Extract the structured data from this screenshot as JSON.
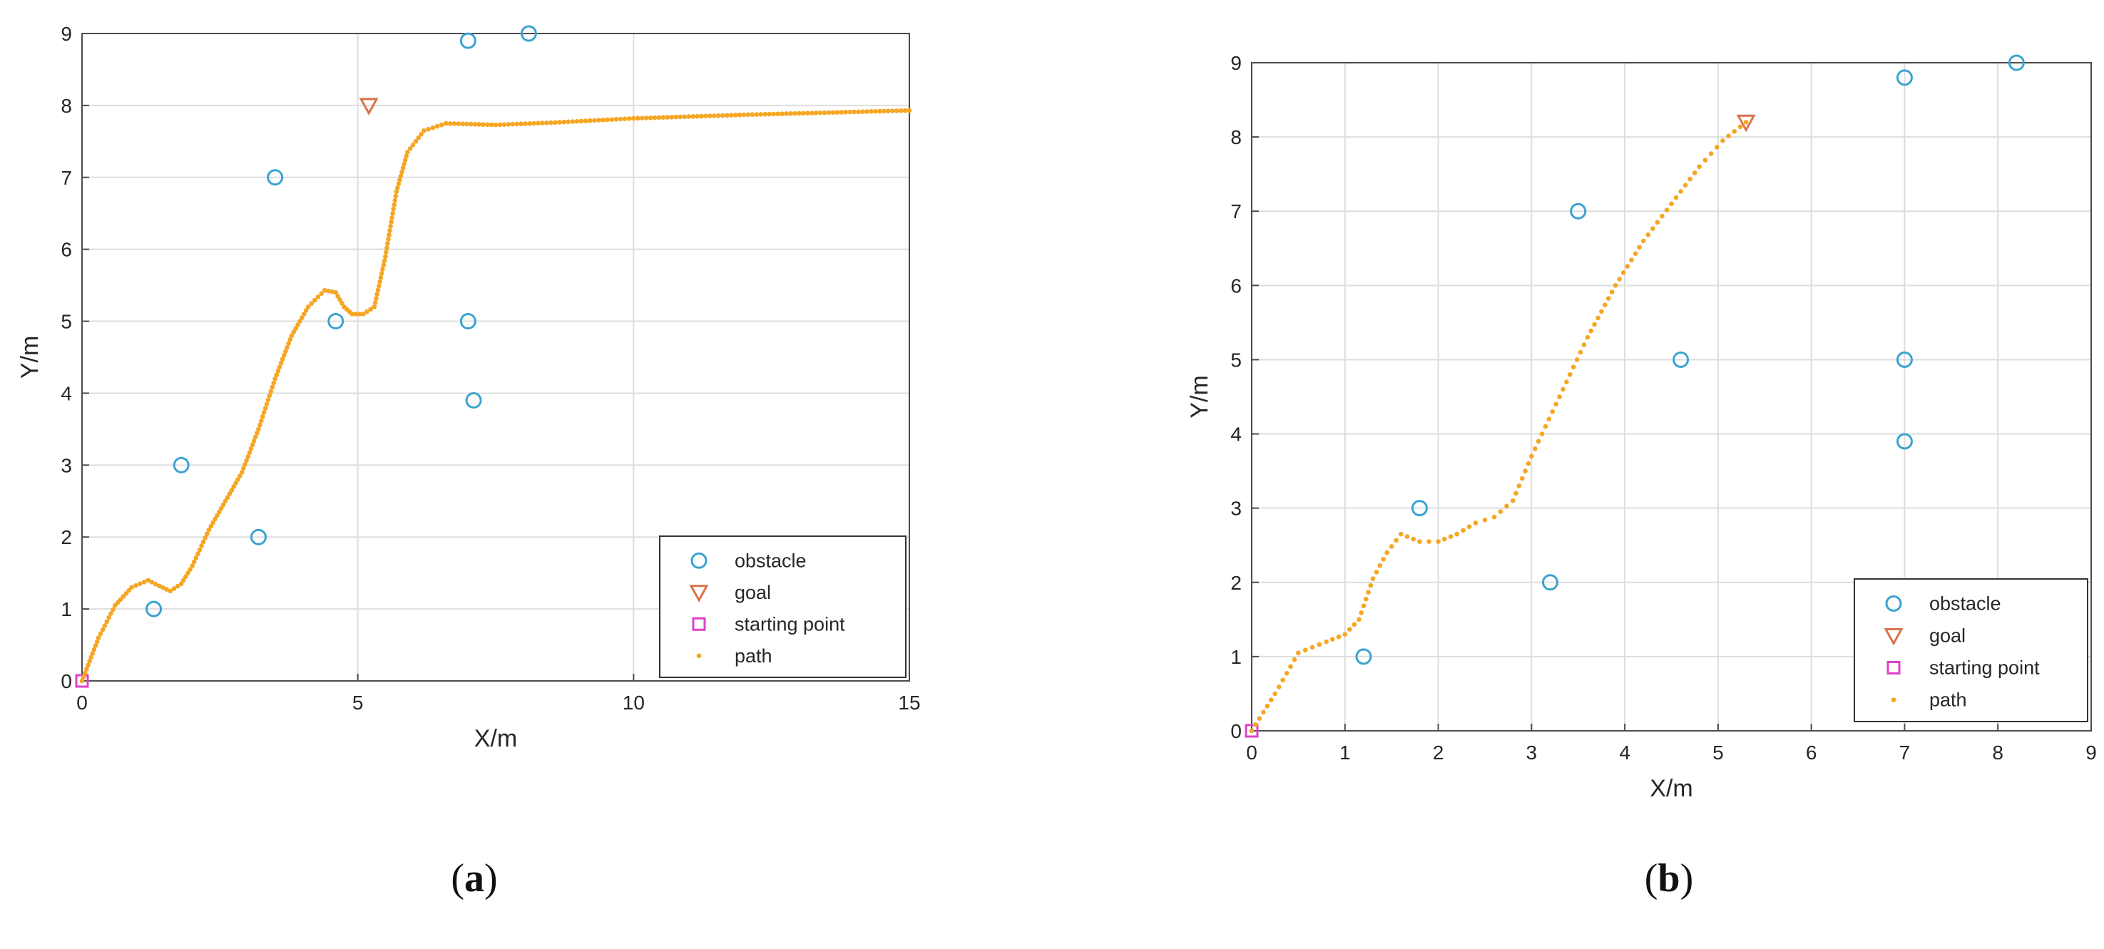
{
  "chart_data": [
    {
      "type": "scatter",
      "panel_label": "a",
      "xlabel": "X/m",
      "ylabel": "Y/m",
      "xlim": [
        0,
        15
      ],
      "ylim": [
        0,
        9
      ],
      "xticks": [
        0,
        5,
        10,
        15
      ],
      "yticks": [
        0,
        1,
        2,
        3,
        4,
        5,
        6,
        7,
        8,
        9
      ],
      "grid": true,
      "legend_position": "bottom-right",
      "legend": [
        "obstacle",
        "goal",
        "starting point",
        "path"
      ],
      "colors": {
        "obstacle": "#3aa3d1",
        "goal": "#d9734a",
        "start": "#e040c8",
        "path": "#f5a623",
        "grid": "#dddddd",
        "axis": "#4d4d4d"
      },
      "series": [
        {
          "name": "obstacle",
          "marker": "circle",
          "points": [
            [
              1.3,
              1
            ],
            [
              1.8,
              3
            ],
            [
              3.2,
              2
            ],
            [
              3.5,
              7
            ],
            [
              4.6,
              5
            ],
            [
              7,
              5
            ],
            [
              7.1,
              3.9
            ],
            [
              7,
              8.9
            ],
            [
              8.1,
              9
            ]
          ]
        },
        {
          "name": "goal",
          "marker": "triangle-down",
          "points": [
            [
              5.2,
              8
            ]
          ]
        },
        {
          "name": "starting point",
          "marker": "square",
          "points": [
            [
              0,
              0
            ]
          ]
        },
        {
          "name": "path",
          "marker": "dot",
          "points": [
            [
              0,
              0
            ],
            [
              0.3,
              0.6
            ],
            [
              0.6,
              1.05
            ],
            [
              0.9,
              1.3
            ],
            [
              1.2,
              1.4
            ],
            [
              1.4,
              1.32
            ],
            [
              1.6,
              1.25
            ],
            [
              1.8,
              1.35
            ],
            [
              2.0,
              1.6
            ],
            [
              2.3,
              2.1
            ],
            [
              2.6,
              2.5
            ],
            [
              2.9,
              2.9
            ],
            [
              3.2,
              3.5
            ],
            [
              3.5,
              4.2
            ],
            [
              3.8,
              4.8
            ],
            [
              4.1,
              5.2
            ],
            [
              4.4,
              5.43
            ],
            [
              4.6,
              5.4
            ],
            [
              4.75,
              5.2
            ],
            [
              4.9,
              5.1
            ],
            [
              5.1,
              5.1
            ],
            [
              5.3,
              5.2
            ],
            [
              5.5,
              5.9
            ],
            [
              5.7,
              6.8
            ],
            [
              5.9,
              7.35
            ],
            [
              6.2,
              7.65
            ],
            [
              6.6,
              7.75
            ],
            [
              7.5,
              7.73
            ],
            [
              8.5,
              7.76
            ],
            [
              10,
              7.82
            ],
            [
              12,
              7.87
            ],
            [
              15,
              7.93
            ]
          ]
        }
      ]
    },
    {
      "type": "scatter",
      "panel_label": "b",
      "xlabel": "X/m",
      "ylabel": "Y/m",
      "xlim": [
        0,
        9
      ],
      "ylim": [
        0,
        9
      ],
      "xticks": [
        0,
        1,
        2,
        3,
        4,
        5,
        6,
        7,
        8,
        9
      ],
      "yticks": [
        0,
        1,
        2,
        3,
        4,
        5,
        6,
        7,
        8,
        9
      ],
      "grid": true,
      "legend_position": "bottom-right",
      "legend": [
        "obstacle",
        "goal",
        "starting point",
        "path"
      ],
      "colors": {
        "obstacle": "#3aa3d1",
        "goal": "#d9734a",
        "start": "#e040c8",
        "path": "#f5a623",
        "grid": "#dddddd",
        "axis": "#4d4d4d"
      },
      "series": [
        {
          "name": "obstacle",
          "marker": "circle",
          "points": [
            [
              1.2,
              1
            ],
            [
              1.8,
              3
            ],
            [
              3.2,
              2
            ],
            [
              3.5,
              7
            ],
            [
              4.6,
              5
            ],
            [
              7,
              5
            ],
            [
              7,
              3.9
            ],
            [
              7,
              8.8
            ],
            [
              8.2,
              9
            ]
          ]
        },
        {
          "name": "goal",
          "marker": "triangle-down",
          "points": [
            [
              5.3,
              8.2
            ]
          ]
        },
        {
          "name": "starting point",
          "marker": "square",
          "points": [
            [
              0,
              0
            ]
          ]
        },
        {
          "name": "path",
          "marker": "dot",
          "points": [
            [
              0,
              0
            ],
            [
              0.25,
              0.5
            ],
            [
              0.5,
              1.05
            ],
            [
              0.8,
              1.2
            ],
            [
              1.0,
              1.3
            ],
            [
              1.15,
              1.5
            ],
            [
              1.3,
              2.05
            ],
            [
              1.45,
              2.4
            ],
            [
              1.6,
              2.65
            ],
            [
              1.8,
              2.55
            ],
            [
              2.0,
              2.55
            ],
            [
              2.2,
              2.65
            ],
            [
              2.4,
              2.8
            ],
            [
              2.6,
              2.88
            ],
            [
              2.8,
              3.1
            ],
            [
              3.0,
              3.7
            ],
            [
              3.3,
              4.5
            ],
            [
              3.6,
              5.3
            ],
            [
              3.9,
              6.0
            ],
            [
              4.2,
              6.6
            ],
            [
              4.5,
              7.1
            ],
            [
              4.8,
              7.6
            ],
            [
              5.05,
              7.95
            ],
            [
              5.3,
              8.2
            ]
          ]
        }
      ]
    }
  ]
}
